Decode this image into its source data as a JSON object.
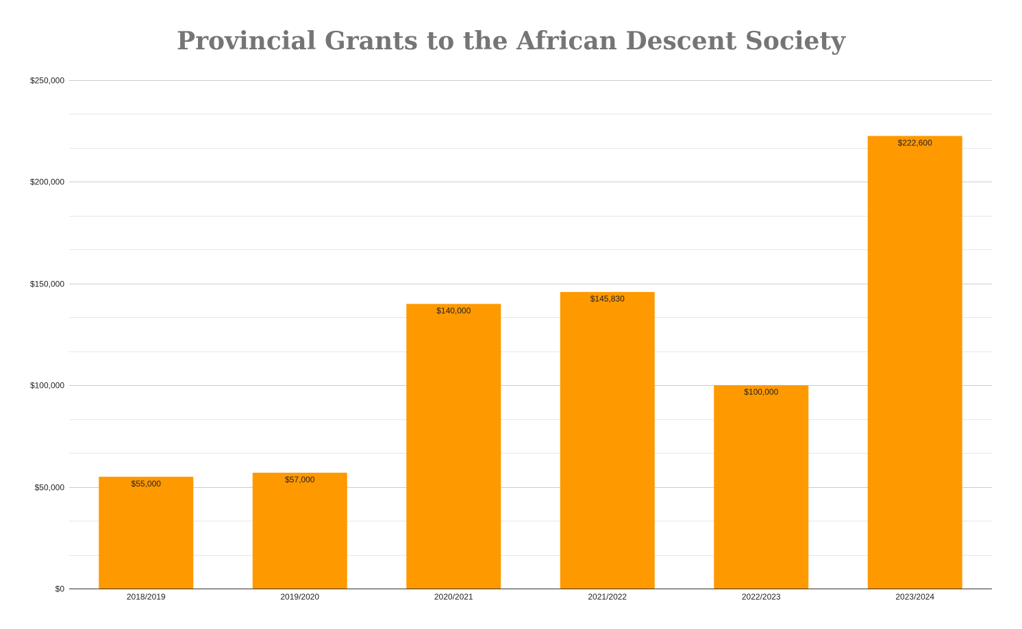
{
  "chart_data": {
    "type": "bar",
    "title": "Provincial Grants to the African Descent Society",
    "xlabel": "",
    "ylabel": "",
    "categories": [
      "2018/2019",
      "2019/2020",
      "2020/2021",
      "2021/2022",
      "2022/2023",
      "2023/2024"
    ],
    "values": [
      55000,
      57000,
      140000,
      145830,
      100000,
      222600
    ],
    "data_labels": [
      "$55,000",
      "$57,000",
      "$140,000",
      "$145,830",
      "$100,000",
      "$222,600"
    ],
    "ylim": [
      0,
      250000
    ],
    "y_ticks": [
      0,
      50000,
      100000,
      150000,
      200000,
      250000
    ],
    "y_tick_labels": [
      "$0",
      "$50,000",
      "$100,000",
      "$150,000",
      "$200,000",
      "$250,000"
    ],
    "minor_gridlines": true,
    "legend": "none",
    "bar_color": "#ff9900",
    "gridline_color": "#cccccc",
    "minor_gridline_color": "#e6e6e6",
    "axis_color": "#333333"
  }
}
